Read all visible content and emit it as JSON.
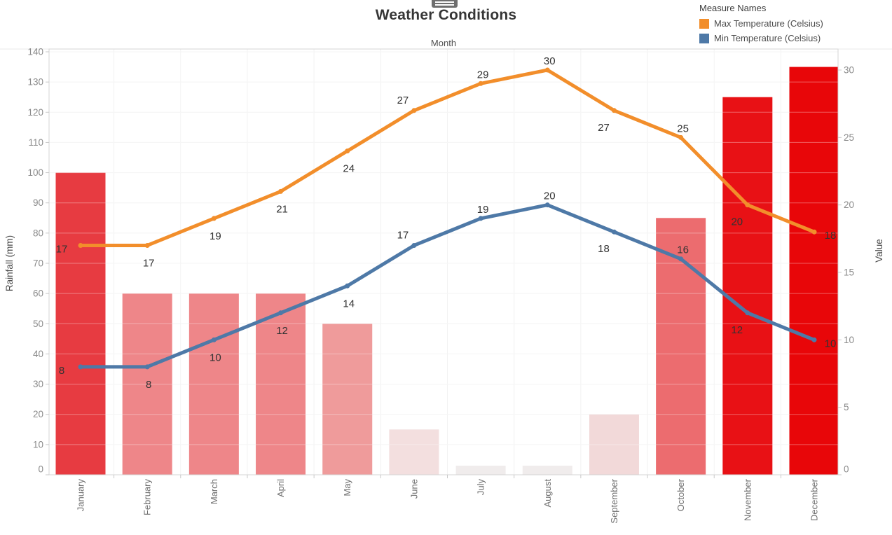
{
  "header": {
    "title": "Weather Conditions"
  },
  "legend": {
    "title": "Measure Names",
    "items": [
      {
        "label": "Max Temperature (Celsius)",
        "color": "#F28E2B"
      },
      {
        "label": "Min Temperature (Celsius)",
        "color": "#4E79A7"
      }
    ]
  },
  "chart_data": {
    "type": "combo-bar-line",
    "title": "Weather Conditions",
    "x_axis_title": "Month",
    "categories": [
      "January",
      "February",
      "March",
      "April",
      "May",
      "June",
      "July",
      "August",
      "September",
      "October",
      "November",
      "December"
    ],
    "bar_series": {
      "name": "Rainfall (mm)",
      "axis": "left",
      "values": [
        100,
        60,
        60,
        60,
        50,
        15,
        3,
        3,
        20,
        85,
        125,
        135
      ],
      "colors": [
        "#E73B41",
        "#EE8689",
        "#EE8689",
        "#EE8689",
        "#EF9B9B",
        "#F3DFDF",
        "#F0ECEC",
        "#F0ECEC",
        "#F2D9D9",
        "#EC6C6F",
        "#E81115",
        "#E80609"
      ]
    },
    "line_series": [
      {
        "name": "Max Temperature (Celsius)",
        "color": "#F28E2B",
        "axis": "right",
        "values": [
          17,
          17,
          19,
          21,
          24,
          27,
          29,
          30,
          27,
          25,
          20,
          18
        ],
        "label_positions": [
          "left",
          "below",
          "below",
          "below",
          "below",
          "above-left",
          "above",
          "above",
          "below-left",
          "above",
          "below-left",
          "right"
        ]
      },
      {
        "name": "Min Temperature (Celsius)",
        "color": "#4E79A7",
        "axis": "right",
        "values": [
          8,
          8,
          10,
          12,
          14,
          17,
          19,
          20,
          18,
          16,
          12,
          10
        ],
        "label_positions": [
          "left",
          "below",
          "below",
          "below",
          "below",
          "above-left",
          "above",
          "above",
          "below-left",
          "above",
          "below-left",
          "right"
        ]
      }
    ],
    "left_axis": {
      "title": "Rainfall (mm)",
      "min": 0,
      "max": 140,
      "tick_step": 10
    },
    "right_axis": {
      "title": "Value",
      "min": 0,
      "max": 30,
      "tick_step": 5
    },
    "grid": true,
    "legend_position": "top-right",
    "data_labels_shown": true
  }
}
